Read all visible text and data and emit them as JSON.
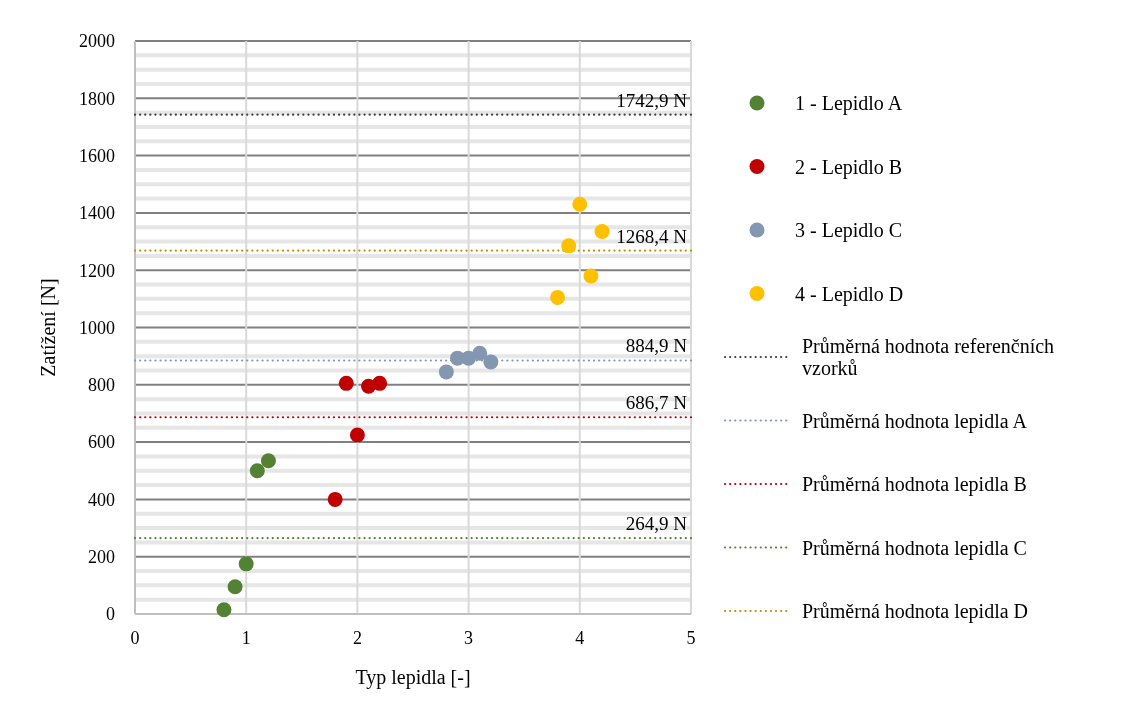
{
  "chart_data": {
    "type": "scatter",
    "xlabel": "Typ lepidla [-]",
    "ylabel": "Zatížení [N]",
    "xlim": [
      0,
      5
    ],
    "xticks": [
      0,
      1,
      2,
      3,
      4,
      5
    ],
    "ylim": [
      0,
      2000
    ],
    "yticks": [
      0,
      {
        "value": 50,
        "label": null
      },
      {
        "value": 100,
        "label": null
      },
      {
        "value": 150,
        "label": null
      },
      200,
      {
        "value": 250,
        "label": null
      },
      {
        "value": 300,
        "label": null
      },
      {
        "value": 350,
        "label": null
      },
      400,
      {
        "value": 450,
        "label": null
      },
      {
        "value": 500,
        "label": null
      },
      {
        "value": 550,
        "label": null
      },
      600,
      {
        "value": 650,
        "label": null
      },
      {
        "value": 700,
        "label": null
      },
      {
        "value": 750,
        "label": null
      },
      800,
      {
        "value": 850,
        "label": null
      },
      {
        "value": 900,
        "label": null
      },
      {
        "value": 950,
        "label": null
      },
      1000,
      {
        "value": 1050,
        "label": null
      },
      {
        "value": 1100,
        "label": null
      },
      {
        "value": 1150,
        "label": null
      },
      1200,
      {
        "value": 1250,
        "label": null
      },
      {
        "value": 1300,
        "label": null
      },
      {
        "value": 1350,
        "label": null
      },
      1400,
      {
        "value": 1450,
        "label": null
      },
      {
        "value": 1500,
        "label": null
      },
      {
        "value": 1550,
        "label": null
      },
      1600,
      {
        "value": 1650,
        "label": null
      },
      {
        "value": 1700,
        "label": null
      },
      {
        "value": 1750,
        "label": null
      },
      1800,
      {
        "value": 1850,
        "label": null
      },
      {
        "value": 1900,
        "label": null
      },
      {
        "value": 1950,
        "label": null
      },
      2000
    ],
    "grid": true,
    "legend": "right",
    "series": [
      {
        "name": "1 - Lepidlo A",
        "color": "#548235",
        "marker": "circle",
        "x": [
          0.8,
          0.9,
          1.0,
          1.1,
          1.2
        ],
        "values": [
          15,
          95,
          175,
          500,
          535
        ]
      },
      {
        "name": "2 - Lepidlo B",
        "color": "#c00000",
        "marker": "circle",
        "x": [
          1.8,
          1.9,
          2.0,
          2.1,
          2.2
        ],
        "values": [
          400,
          805,
          625,
          795,
          805
        ]
      },
      {
        "name": "3 - Lepidlo C",
        "color": "#8497b0",
        "marker": "circle",
        "x": [
          2.8,
          2.9,
          3.0,
          3.1,
          3.2
        ],
        "values": [
          845,
          893,
          893,
          910,
          880
        ]
      },
      {
        "name": "4 - Lepidlo D",
        "color": "#ffc000",
        "marker": "circle",
        "x": [
          3.8,
          3.9,
          4.0,
          4.1,
          4.2
        ],
        "values": [
          1105,
          1285,
          1430,
          1180,
          1335
        ]
      },
      {
        "type": "line",
        "name": "Průměrná hodnota referenčních vzorků",
        "color": "#404040",
        "line_style": "dotted",
        "x": [
          0,
          5
        ],
        "values": [
          1742.9,
          1742.9
        ],
        "value_labels": [
          null,
          "1742,9 N"
        ]
      },
      {
        "type": "line",
        "name": "Průměrná hodnota lepidla A",
        "color": "#8497b0",
        "line_style": "dotted",
        "x": [
          0,
          5
        ],
        "values": [
          884.9,
          884.9
        ],
        "value_labels": [
          null,
          "884,9 N"
        ]
      },
      {
        "type": "line",
        "name": "Průměrná hodnota lepidla B",
        "color": "#c00000",
        "line_style": "dotted",
        "x": [
          0,
          5
        ],
        "values": [
          686.7,
          686.7
        ],
        "value_labels": [
          null,
          "686,7 N"
        ]
      },
      {
        "type": "line",
        "name": "Průměrná hodnota lepidla C",
        "color": "#548235",
        "line_style": "dotted",
        "x": [
          0,
          5
        ],
        "values": [
          264.9,
          264.9
        ],
        "value_labels": [
          null,
          "264,9 N"
        ]
      },
      {
        "type": "line",
        "name": "Průměrná hodnota lepidla D",
        "color": "#bf9000",
        "line_style": "dotted",
        "x": [
          0,
          5
        ],
        "values": [
          1268.4,
          1268.4
        ],
        "value_labels": [
          null,
          "1268,4 N"
        ]
      }
    ]
  }
}
